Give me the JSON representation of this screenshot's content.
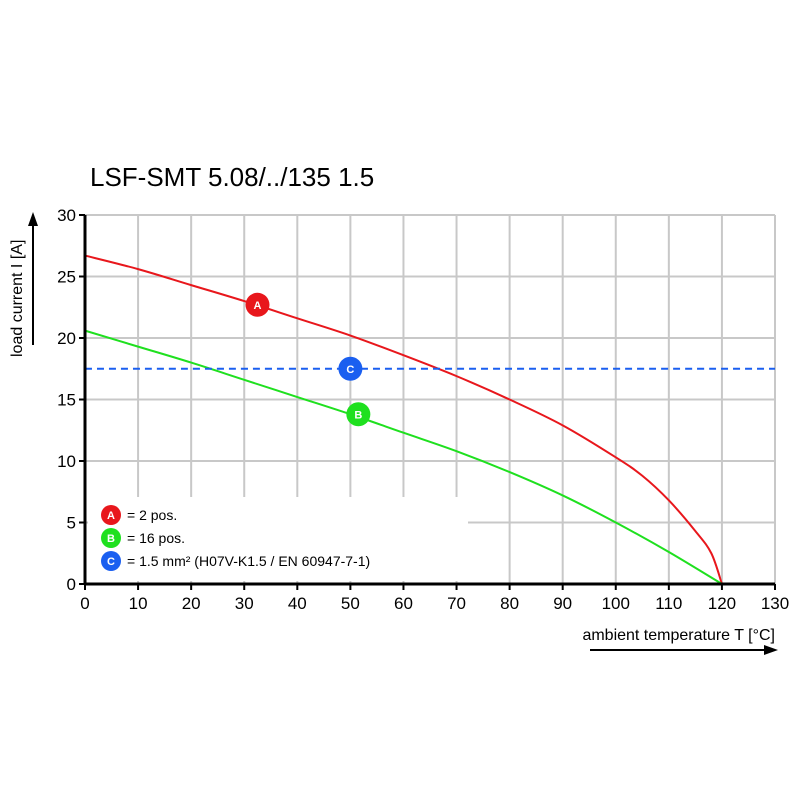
{
  "chart_data": {
    "type": "line",
    "title": "LSF-SMT 5.08/../135 1.5",
    "xlabel": "ambient temperature T [°C]",
    "ylabel": "load current I [A]",
    "xlim": [
      0,
      130
    ],
    "ylim": [
      0,
      30
    ],
    "xticks": [
      0,
      10,
      20,
      30,
      40,
      50,
      60,
      70,
      80,
      90,
      100,
      110,
      120,
      130
    ],
    "yticks": [
      0,
      5,
      10,
      15,
      20,
      25,
      30
    ],
    "grid": true,
    "legend_position": "bottom-left",
    "series": [
      {
        "name": "A",
        "label": "= 2 pos.",
        "color": "#e8171c",
        "style": "solid",
        "x": [
          0,
          10,
          20,
          30,
          40,
          50,
          60,
          70,
          80,
          90,
          100,
          105,
          110,
          115,
          118,
          120
        ],
        "y": [
          26.7,
          25.6,
          24.3,
          23.0,
          21.6,
          20.2,
          18.6,
          16.9,
          15.0,
          12.9,
          10.3,
          8.8,
          6.8,
          4.3,
          2.5,
          0
        ],
        "marker": {
          "x": 32.5,
          "y": 22.7
        }
      },
      {
        "name": "B",
        "label": "= 16 pos.",
        "color": "#1fe01f",
        "style": "solid",
        "x": [
          0,
          10,
          20,
          30,
          40,
          50,
          60,
          70,
          80,
          90,
          100,
          110,
          120
        ],
        "y": [
          20.6,
          19.3,
          18.0,
          16.6,
          15.2,
          13.8,
          12.3,
          10.8,
          9.1,
          7.2,
          5.0,
          2.6,
          0
        ],
        "marker": {
          "x": 51.5,
          "y": 13.8
        }
      },
      {
        "name": "C",
        "label": "= 1.5 mm² (H07V-K1.5 / EN 60947-7-1)",
        "color": "#1a5ff0",
        "style": "dashed",
        "x": [
          0,
          130
        ],
        "y": [
          17.5,
          17.5
        ],
        "marker": {
          "x": 50,
          "y": 17.5
        }
      }
    ]
  }
}
